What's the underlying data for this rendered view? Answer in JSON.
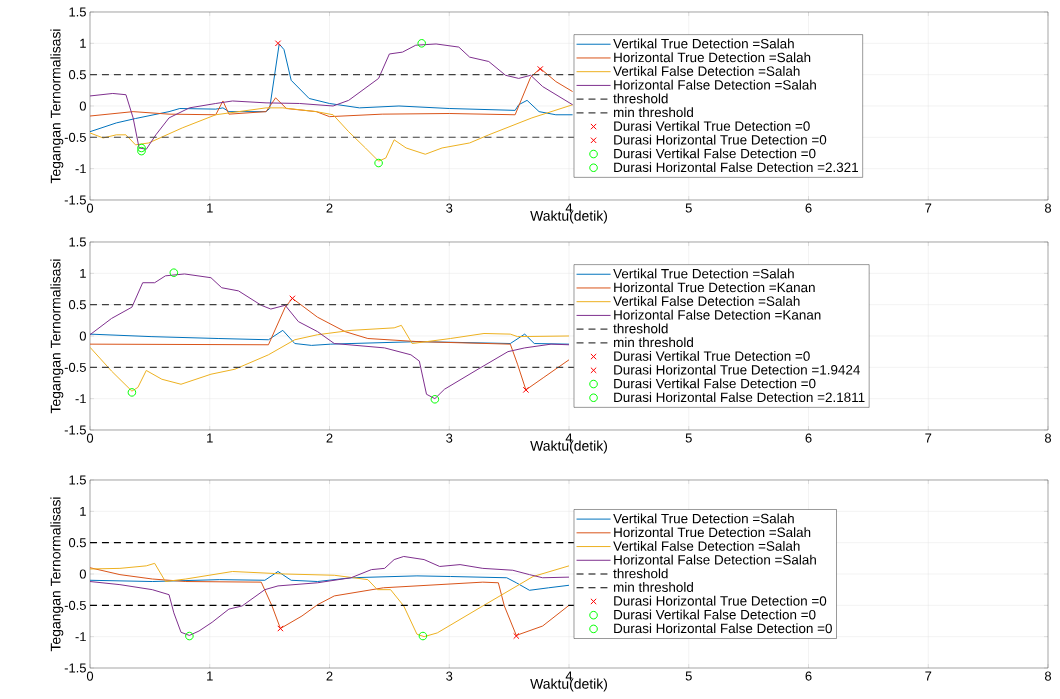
{
  "chart_data": [
    {
      "type": "line",
      "xlabel": "Waktu(detik)",
      "ylabel": "Tegangan Ternormalisasi",
      "xlim": [
        0,
        8
      ],
      "ylim": [
        -1.5,
        1.5
      ],
      "xticks": [
        0,
        1,
        2,
        3,
        4,
        5,
        6,
        7,
        8
      ],
      "yticks": [
        -1.5,
        -1,
        -0.5,
        0,
        0.5,
        1,
        1.5
      ],
      "grid": true,
      "legend": "right",
      "series": [
        {
          "name": "Vertikal True Detection =Salah",
          "color": "#0072bd",
          "x": [
            0,
            0.22,
            0.38,
            0.66,
            0.75,
            1.05,
            1.11,
            1.16,
            1.47,
            1.5,
            1.58,
            1.62,
            1.68,
            1.83,
            2.0,
            2.25,
            2.58,
            3.0,
            3.55,
            3.58,
            3.65,
            3.75,
            3.89,
            4.03
          ],
          "values": [
            -0.41,
            -0.27,
            -0.2,
            -0.09,
            -0.04,
            -0.05,
            -0.03,
            -0.09,
            -0.09,
            -0.04,
            0.99,
            0.9,
            0.41,
            0.12,
            0.04,
            -0.03,
            0.0,
            -0.04,
            -0.07,
            0.02,
            0.09,
            -0.09,
            -0.14,
            -0.14
          ]
        },
        {
          "name": "Horizontal True Detection =Salah",
          "color": "#d95319",
          "x": [
            0,
            0.36,
            0.66,
            1.05,
            1.11,
            1.16,
            1.47,
            1.55,
            1.64,
            1.89,
            2.0,
            2.44,
            3.0,
            3.55,
            3.68,
            3.76,
            3.89,
            4.03
          ],
          "values": [
            -0.16,
            -0.09,
            -0.13,
            -0.14,
            0.08,
            -0.13,
            -0.09,
            0.13,
            -0.04,
            -0.09,
            -0.17,
            -0.13,
            -0.12,
            -0.14,
            0.46,
            0.6,
            0.39,
            0.23
          ]
        },
        {
          "name": "Vertikal False Detection =Salah",
          "color": "#edb120",
          "x": [
            0,
            0.11,
            0.22,
            0.3,
            0.38,
            0.49,
            0.77,
            1.05,
            1.47,
            1.61,
            1.89,
            2.03,
            2.16,
            2.3,
            2.41,
            2.47,
            2.54,
            2.64,
            2.8,
            2.94,
            3.17,
            3.33,
            3.69,
            4.03
          ],
          "values": [
            -0.43,
            -0.51,
            -0.46,
            -0.46,
            -0.62,
            -0.59,
            -0.35,
            -0.14,
            -0.03,
            -0.03,
            -0.09,
            -0.14,
            -0.41,
            -0.67,
            -0.88,
            -0.83,
            -0.54,
            -0.67,
            -0.77,
            -0.67,
            -0.59,
            -0.46,
            -0.19,
            0.02
          ]
        },
        {
          "name": "Horizontal False Detection =Salah",
          "color": "#7e2f8e",
          "x": [
            0,
            0.19,
            0.3,
            0.36,
            0.41,
            0.47,
            0.55,
            0.66,
            0.83,
            1.05,
            1.19,
            1.47,
            1.75,
            2.03,
            2.16,
            2.41,
            2.5,
            2.61,
            2.72,
            2.89,
            3.08,
            3.17,
            3.33,
            3.47,
            3.58,
            3.68,
            3.78,
            4.03
          ],
          "values": [
            0.16,
            0.2,
            0.18,
            -0.19,
            -0.67,
            -0.69,
            -0.46,
            -0.19,
            -0.03,
            0.04,
            0.08,
            0.05,
            0.04,
            0.0,
            0.09,
            0.44,
            0.83,
            0.86,
            0.97,
            0.99,
            0.94,
            0.78,
            0.71,
            0.49,
            0.44,
            0.49,
            0.31,
            0.02
          ]
        },
        {
          "name": "Durasi Vertikal True Detection =0",
          "type": "scatter",
          "marker": "cross",
          "color": "#ff0000",
          "x": [
            1.57
          ],
          "values": [
            1.0
          ]
        },
        {
          "name": "Durasi Horizontal True Detection =0",
          "type": "scatter",
          "marker": "cross",
          "color": "#ff0000",
          "x": [
            3.76
          ],
          "values": [
            0.59
          ]
        },
        {
          "name": "Durasi Vertikal False Detection =0",
          "type": "scatter",
          "marker": "circle",
          "color": "#00ff00",
          "x": [
            0.43,
            2.41
          ],
          "values": [
            -0.67,
            -0.91
          ]
        },
        {
          "name": "Durasi Horizontal False Detection =2.321",
          "type": "scatter",
          "marker": "circle",
          "color": "#00ff00",
          "x": [
            0.43,
            2.77
          ],
          "values": [
            -0.72,
            1.0
          ]
        }
      ],
      "ref_lines": [
        {
          "axis": "y",
          "value": 0.5,
          "label": "threshold",
          "color": "#404040",
          "line_style": "dashed"
        },
        {
          "axis": "y",
          "value": -0.5,
          "label": "min threshold",
          "color": "#404040",
          "line_style": "dashed"
        }
      ]
    },
    {
      "type": "line",
      "xlabel": "Waktu(detik)",
      "ylabel": "Tegangan Ternormalisasi",
      "xlim": [
        0,
        8
      ],
      "ylim": [
        -1.5,
        1.5
      ],
      "xticks": [
        0,
        1,
        2,
        3,
        4,
        5,
        6,
        7,
        8
      ],
      "yticks": [
        -1.5,
        -1,
        -0.5,
        0,
        0.5,
        1,
        1.5
      ],
      "grid": true,
      "legend": "right",
      "series": [
        {
          "name": "Vertikal True Detection =Salah",
          "color": "#0072bd",
          "x": [
            0,
            0.51,
            1.07,
            1.49,
            1.61,
            1.71,
            1.85,
            2.01,
            2.18,
            2.74,
            3.01,
            3.51,
            3.63,
            3.71,
            4.0
          ],
          "values": [
            0.03,
            -0.01,
            -0.04,
            -0.06,
            0.09,
            -0.12,
            -0.15,
            -0.13,
            -0.12,
            -0.09,
            -0.1,
            -0.12,
            0.03,
            -0.12,
            -0.13
          ]
        },
        {
          "name": "Horizontal True Detection =Kanan",
          "color": "#d95319",
          "x": [
            0,
            1.49,
            1.63,
            1.69,
            1.9,
            2.13,
            2.32,
            2.74,
            3.51,
            3.57,
            3.64,
            3.79,
            4.0
          ],
          "values": [
            -0.13,
            -0.14,
            0.46,
            0.6,
            0.3,
            0.07,
            -0.04,
            -0.09,
            -0.13,
            -0.45,
            -0.86,
            -0.66,
            -0.38
          ]
        },
        {
          "name": "Vertikal False Detection =Salah",
          "color": "#edb120",
          "x": [
            0,
            0.18,
            0.35,
            0.4,
            0.47,
            0.6,
            0.76,
            1.01,
            1.21,
            1.49,
            1.71,
            1.9,
            2.18,
            2.54,
            2.6,
            2.69,
            3.01,
            3.29,
            3.51,
            3.57,
            4.0
          ],
          "values": [
            -0.18,
            -0.56,
            -0.88,
            -0.82,
            -0.55,
            -0.69,
            -0.77,
            -0.61,
            -0.53,
            -0.3,
            -0.06,
            0.02,
            0.09,
            0.13,
            0.17,
            -0.12,
            -0.04,
            0.04,
            0.03,
            -0.01,
            0.0
          ]
        },
        {
          "name": "Horizontal False Detection =Kanan",
          "color": "#7e2f8e",
          "x": [
            0,
            0.18,
            0.35,
            0.44,
            0.54,
            0.63,
            0.79,
            1.01,
            1.1,
            1.24,
            1.43,
            1.51,
            1.63,
            1.74,
            1.9,
            2.04,
            2.46,
            2.68,
            2.75,
            2.81,
            2.88,
            2.96,
            3.24,
            3.49,
            3.63,
            3.85,
            4.0
          ],
          "values": [
            0.02,
            0.28,
            0.46,
            0.85,
            0.85,
            0.96,
            0.99,
            0.93,
            0.77,
            0.72,
            0.49,
            0.43,
            0.49,
            0.23,
            0.07,
            -0.12,
            -0.19,
            -0.3,
            -0.4,
            -0.93,
            -1.0,
            -0.85,
            -0.53,
            -0.25,
            -0.19,
            -0.13,
            -0.14
          ]
        },
        {
          "name": "Durasi Vertikal True Detection =0",
          "type": "scatter",
          "marker": "cross",
          "color": "#ff0000"
        },
        {
          "name": "Durasi Horizontal True Detection =1.9424",
          "type": "scatter",
          "marker": "cross",
          "color": "#ff0000",
          "x": [
            1.69,
            3.64
          ],
          "values": [
            0.6,
            -0.86
          ]
        },
        {
          "name": "Durasi Vertikal False Detection =0",
          "type": "scatter",
          "marker": "circle",
          "color": "#00ff00",
          "x": [
            0.35
          ],
          "values": [
            -0.9
          ]
        },
        {
          "name": "Durasi Horizontal False Detection =2.1811",
          "type": "scatter",
          "marker": "circle",
          "color": "#00ff00",
          "x": [
            0.7,
            2.88
          ],
          "values": [
            1.01,
            -1.01
          ]
        }
      ],
      "ref_lines": [
        {
          "axis": "y",
          "value": 0.5,
          "label": "threshold",
          "color": "#404040",
          "line_style": "dashed"
        },
        {
          "axis": "y",
          "value": -0.5,
          "label": "min threshold",
          "color": "#404040",
          "line_style": "dashed"
        }
      ]
    },
    {
      "type": "line",
      "xlabel": "Waktu(detik)",
      "ylabel": "Tegangan Ternormalisasi",
      "xlim": [
        0,
        8
      ],
      "ylim": [
        -1.5,
        1.5
      ],
      "xticks": [
        0,
        1,
        2,
        3,
        4,
        5,
        6,
        7,
        8
      ],
      "yticks": [
        -1.5,
        -1,
        -0.5,
        0,
        0.5,
        1,
        1.5
      ],
      "grid": true,
      "legend": "right",
      "series": [
        {
          "name": "Vertikal True Detection =Salah",
          "color": "#0072bd",
          "x": [
            0,
            0.52,
            1.08,
            1.46,
            1.57,
            1.68,
            1.9,
            2.18,
            2.73,
            3.01,
            3.48,
            3.56,
            3.67,
            3.83,
            4.0
          ],
          "values": [
            -0.1,
            -0.12,
            -0.09,
            -0.1,
            0.04,
            -0.1,
            -0.12,
            -0.06,
            -0.03,
            -0.04,
            -0.06,
            -0.14,
            -0.26,
            -0.22,
            -0.18
          ]
        },
        {
          "name": "Horizontal True Detection =Salah",
          "color": "#d95319",
          "x": [
            0,
            0.25,
            0.52,
            0.8,
            1.43,
            1.52,
            1.59,
            1.77,
            1.9,
            2.04,
            2.45,
            3.28,
            3.41,
            3.46,
            3.56,
            3.78,
            4.0
          ],
          "values": [
            0.1,
            -0.01,
            -0.08,
            -0.12,
            -0.13,
            -0.51,
            -0.87,
            -0.67,
            -0.49,
            -0.35,
            -0.22,
            -0.13,
            -0.14,
            -0.51,
            -0.98,
            -0.83,
            -0.5
          ]
        },
        {
          "name": "Vertikal False Detection =Salah",
          "color": "#edb120",
          "x": [
            0,
            0.25,
            0.47,
            0.54,
            0.63,
            0.8,
            1.19,
            1.63,
            2.04,
            2.32,
            2.4,
            2.51,
            2.62,
            2.73,
            2.79,
            2.9,
            3.28,
            3.7,
            4.0
          ],
          "values": [
            0.08,
            0.09,
            0.13,
            0.17,
            -0.12,
            -0.08,
            0.04,
            0.0,
            -0.02,
            -0.09,
            -0.25,
            -0.25,
            -0.51,
            -0.96,
            -1.0,
            -0.94,
            -0.51,
            -0.04,
            0.13
          ]
        },
        {
          "name": "Horizontal False Detection =Salah",
          "color": "#7e2f8e",
          "x": [
            0,
            0.25,
            0.52,
            0.66,
            0.7,
            0.76,
            0.83,
            0.91,
            1.02,
            1.16,
            1.27,
            1.46,
            1.57,
            1.9,
            2.18,
            2.35,
            2.46,
            2.54,
            2.62,
            2.79,
            2.92,
            3.09,
            3.28,
            3.53,
            3.67,
            3.78,
            4.0
          ],
          "values": [
            -0.12,
            -0.17,
            -0.25,
            -0.33,
            -0.62,
            -0.93,
            -0.98,
            -0.91,
            -0.77,
            -0.56,
            -0.51,
            -0.25,
            -0.19,
            -0.14,
            -0.06,
            0.07,
            0.09,
            0.23,
            0.28,
            0.23,
            0.12,
            0.15,
            0.09,
            0.06,
            -0.01,
            -0.06,
            -0.05
          ]
        },
        {
          "name": "Durasi Horizontal True Detection =0",
          "type": "scatter",
          "marker": "cross",
          "color": "#ff0000",
          "x": [
            1.59,
            3.56
          ],
          "values": [
            -0.87,
            -0.99
          ]
        },
        {
          "name": "Durasi Vertikal False Detection =0",
          "type": "scatter",
          "marker": "circle",
          "color": "#00ff00",
          "x": [
            2.78
          ],
          "values": [
            -0.99
          ]
        },
        {
          "name": "Durasi Horizontal False Detection =0",
          "type": "scatter",
          "marker": "circle",
          "color": "#00ff00",
          "x": [
            0.83
          ],
          "values": [
            -0.99
          ]
        }
      ],
      "ref_lines": [
        {
          "axis": "y",
          "value": 0.5,
          "label": "threshold",
          "color": "#000000",
          "line_style": "dashed"
        },
        {
          "axis": "y",
          "value": -0.5,
          "label": "min threshold",
          "color": "#000000",
          "line_style": "dashed"
        }
      ]
    }
  ]
}
